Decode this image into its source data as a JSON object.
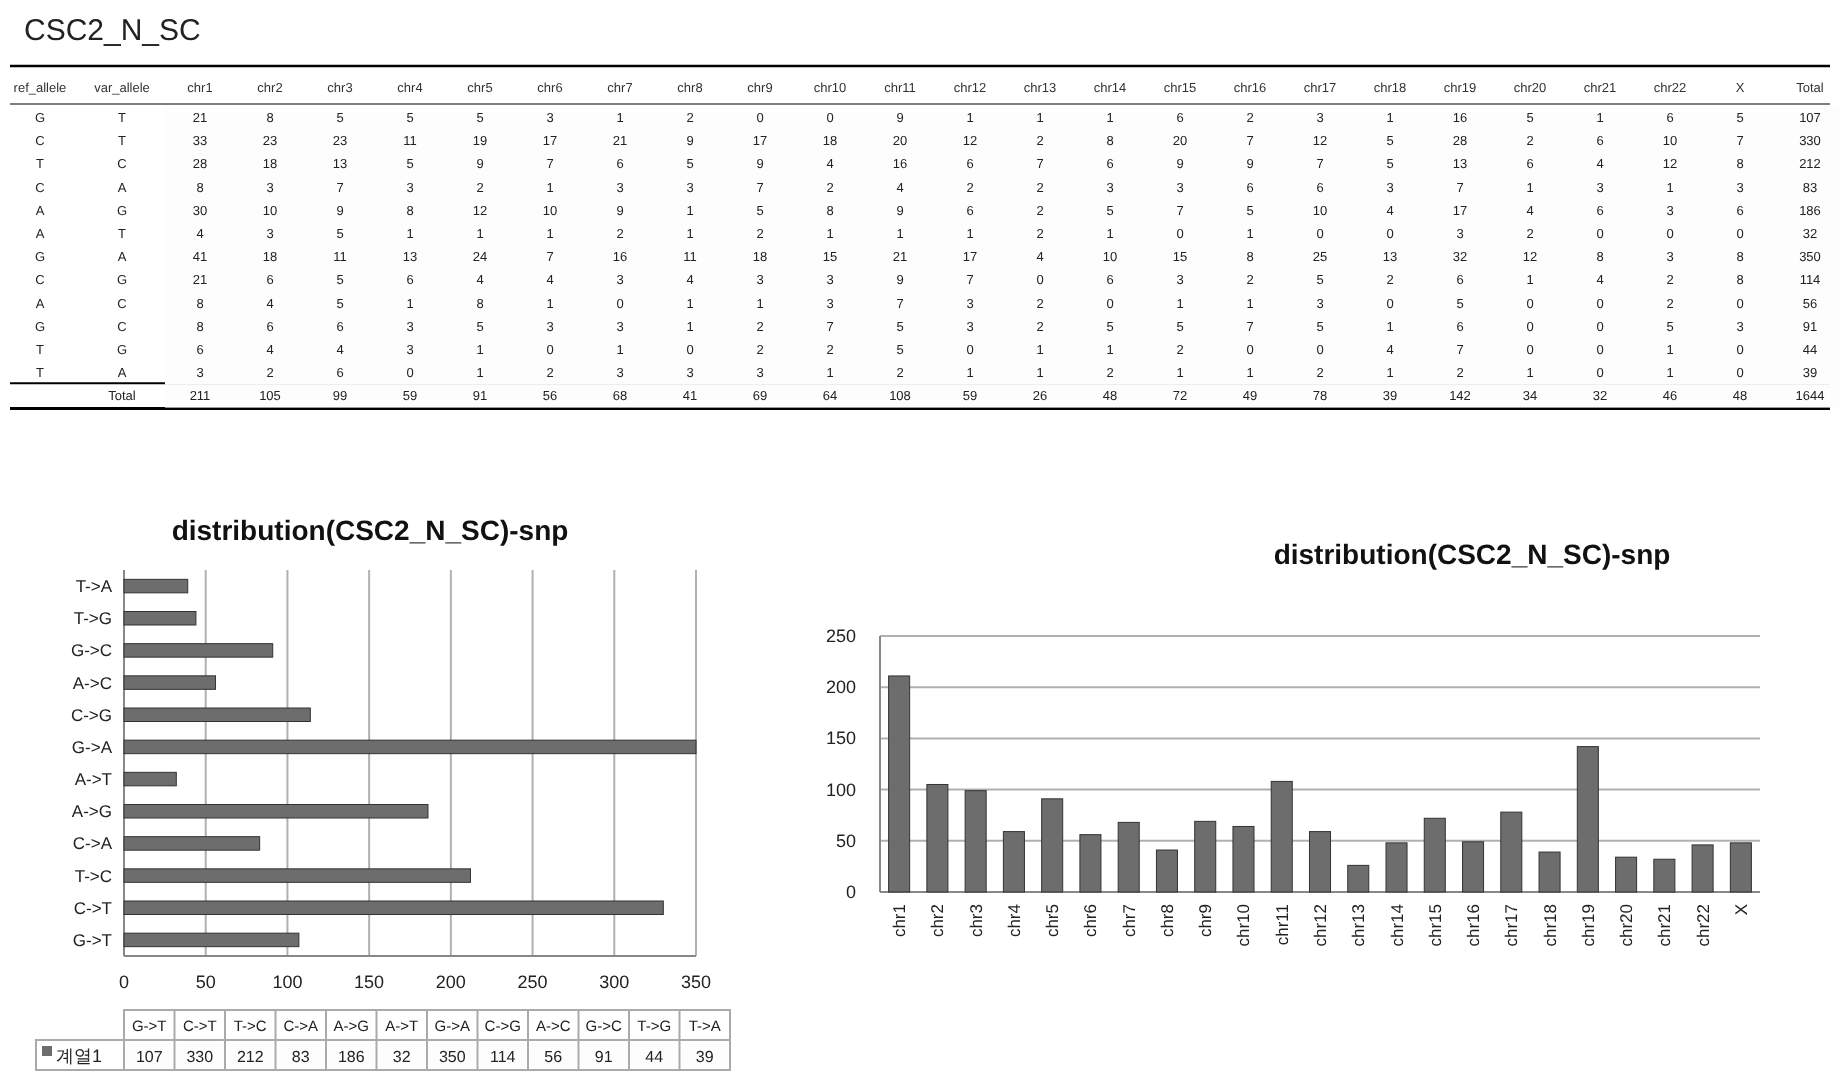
{
  "chart_data": [
    {
      "type": "heatmap",
      "title": "CSC2_N_SC",
      "data_labels": true,
      "ylabel": "var_allele",
      "y2label": "ref_allele",
      "categories": [
        "chr1",
        "chr2",
        "chr3",
        "chr4",
        "chr5",
        "chr6",
        "chr7",
        "chr8",
        "chr9",
        "chr10",
        "chr11",
        "chr12",
        "chr13",
        "chr14",
        "chr15",
        "chr16",
        "chr17",
        "chr18",
        "chr19",
        "chr20",
        "chr21",
        "chr22",
        "X",
        "Total"
      ],
      "y_categories": [
        "T",
        "T",
        "C",
        "A",
        "G",
        "T",
        "A",
        "G",
        "C",
        "C",
        "G",
        "A",
        "Total"
      ],
      "y2_categories": [
        "G",
        "C",
        "T",
        "C",
        "A",
        "A",
        "G",
        "C",
        "A",
        "G",
        "T",
        "T",
        null
      ],
      "cells": [
        [
          21,
          8,
          5,
          5,
          5,
          3,
          1,
          2,
          0,
          0,
          9,
          1,
          1,
          1,
          6,
          2,
          3,
          1,
          16,
          5,
          1,
          6,
          5,
          107
        ],
        [
          33,
          23,
          23,
          11,
          19,
          17,
          21,
          9,
          17,
          18,
          20,
          12,
          2,
          8,
          20,
          7,
          12,
          5,
          28,
          2,
          6,
          10,
          7,
          330
        ],
        [
          28,
          18,
          13,
          5,
          9,
          7,
          6,
          5,
          9,
          4,
          16,
          6,
          7,
          6,
          9,
          9,
          7,
          5,
          13,
          6,
          4,
          12,
          8,
          212
        ],
        [
          8,
          3,
          7,
          3,
          2,
          1,
          3,
          3,
          7,
          2,
          4,
          2,
          2,
          3,
          3,
          6,
          6,
          3,
          7,
          1,
          3,
          1,
          3,
          83
        ],
        [
          30,
          10,
          9,
          8,
          12,
          10,
          9,
          1,
          5,
          8,
          9,
          6,
          2,
          5,
          7,
          5,
          10,
          4,
          17,
          4,
          6,
          3,
          6,
          186
        ],
        [
          4,
          3,
          5,
          1,
          1,
          1,
          2,
          1,
          2,
          1,
          1,
          1,
          2,
          1,
          0,
          1,
          0,
          0,
          3,
          2,
          0,
          0,
          0,
          32
        ],
        [
          41,
          18,
          11,
          13,
          24,
          7,
          16,
          11,
          18,
          15,
          21,
          17,
          4,
          10,
          15,
          8,
          25,
          13,
          32,
          12,
          8,
          3,
          8,
          350
        ],
        [
          21,
          6,
          5,
          6,
          4,
          4,
          3,
          4,
          3,
          3,
          9,
          7,
          0,
          6,
          3,
          2,
          5,
          2,
          6,
          1,
          4,
          2,
          8,
          114
        ],
        [
          8,
          4,
          5,
          1,
          8,
          1,
          0,
          1,
          1,
          3,
          7,
          3,
          2,
          0,
          1,
          1,
          3,
          0,
          5,
          0,
          0,
          2,
          0,
          56
        ],
        [
          8,
          6,
          6,
          3,
          5,
          3,
          3,
          1,
          2,
          7,
          5,
          3,
          2,
          5,
          5,
          7,
          5,
          1,
          6,
          0,
          0,
          5,
          3,
          91
        ],
        [
          6,
          4,
          4,
          3,
          1,
          0,
          1,
          0,
          2,
          2,
          5,
          0,
          1,
          1,
          2,
          0,
          0,
          4,
          7,
          0,
          0,
          1,
          0,
          44
        ],
        [
          3,
          2,
          6,
          0,
          1,
          2,
          3,
          3,
          3,
          1,
          2,
          1,
          1,
          2,
          1,
          1,
          2,
          1,
          2,
          1,
          0,
          1,
          0,
          39
        ],
        [
          211,
          105,
          99,
          59,
          91,
          56,
          68,
          41,
          69,
          64,
          108,
          59,
          26,
          48,
          72,
          49,
          78,
          39,
          142,
          34,
          32,
          46,
          48,
          1644
        ]
      ]
    },
    {
      "type": "bar",
      "orientation": "horizontal",
      "title": "distribution(CSC2_N_SC)-snp",
      "categories": [
        "T->A",
        "T->G",
        "G->C",
        "A->C",
        "C->G",
        "G->A",
        "A->T",
        "A->G",
        "C->A",
        "T->C",
        "C->T",
        "G->T"
      ],
      "series": [
        {
          "color": "#6d6d6d",
          "values": [
            39,
            44,
            91,
            56,
            114,
            350,
            32,
            186,
            83,
            212,
            330,
            107
          ]
        }
      ],
      "xlim": [
        0,
        350
      ],
      "xticks": [
        0,
        50,
        100,
        150,
        200,
        250,
        300,
        350
      ],
      "grid": "x"
    },
    {
      "type": "bar",
      "title": "distribution(CSC2_N_SC)-snp",
      "categories": [
        "chr1",
        "chr2",
        "chr3",
        "chr4",
        "chr5",
        "chr6",
        "chr7",
        "chr8",
        "chr9",
        "chr10",
        "chr11",
        "chr12",
        "chr13",
        "chr14",
        "chr15",
        "chr16",
        "chr17",
        "chr18",
        "chr19",
        "chr20",
        "chr21",
        "chr22",
        "X"
      ],
      "series": [
        {
          "color": "#6d6d6d",
          "values": [
            211,
            105,
            99,
            59,
            91,
            56,
            68,
            41,
            69,
            64,
            108,
            59,
            26,
            48,
            72,
            49,
            78,
            39,
            142,
            34,
            32,
            46,
            48
          ]
        }
      ],
      "ylim": [
        0,
        250
      ],
      "yticks": [
        0,
        50,
        100,
        150,
        200,
        250
      ],
      "grid": "y"
    },
    {
      "type": "heatmap",
      "data_labels": true,
      "categories": [
        "G->T",
        "C->T",
        "T->C",
        "C->A",
        "A->G",
        "A->T",
        "G->A",
        "C->G",
        "A->C",
        "G->C",
        "T->G",
        "T->A"
      ],
      "y_categories": [
        "계열1"
      ],
      "cells": [
        [
          107,
          330,
          212,
          83,
          186,
          32,
          350,
          114,
          56,
          91,
          44,
          39
        ]
      ]
    }
  ]
}
